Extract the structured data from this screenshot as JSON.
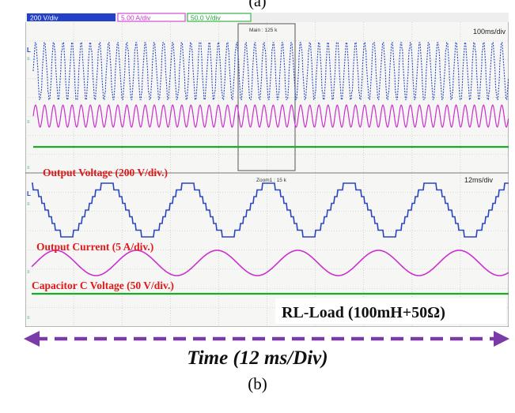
{
  "top_caption": "(a)",
  "bottom_caption": "(b)",
  "scope": {
    "status_bar": {
      "ch1": "200 V/div",
      "ch2": "5.00 A/div",
      "ch3": "50.0 V/div"
    },
    "main_window": {
      "timebase": "100ms/div",
      "zoom_box_label": "Main : 125 k"
    },
    "zoom_window": {
      "timebase": "12ms/div",
      "zoom_label": "Zoom1 : 15 k"
    },
    "marker_L": "L"
  },
  "annotations": {
    "output_voltage": "Output Voltage (200 V/div.)",
    "output_current": "Output Current (5 A/div.)",
    "capacitor_voltage": "Capacitor C Voltage (50 V/div.)",
    "load": "RL-Load (100mH+50Ω)"
  },
  "time_axis": {
    "label": "Time (12 ms/Div)"
  },
  "colors": {
    "voltage_trace": "#2a45c0",
    "current_trace": "#cc2fcf",
    "cap_trace": "#1aaa2a",
    "annotation_red": "#e01818",
    "arrow_purple": "#7a3aa8"
  }
}
